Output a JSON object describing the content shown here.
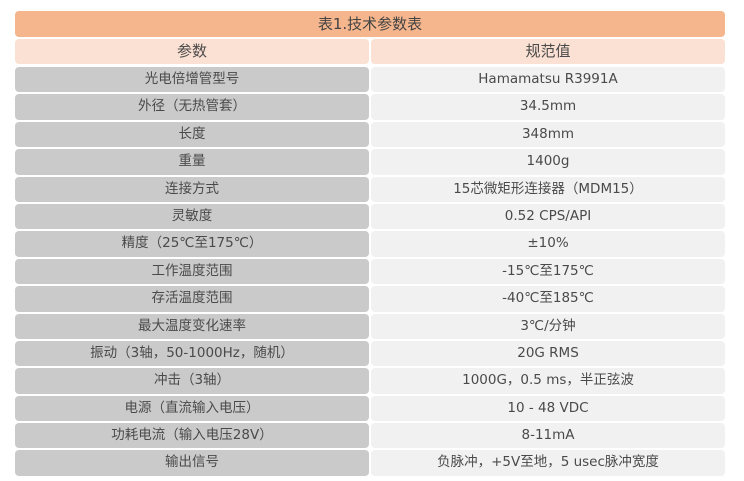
{
  "title": "表1.技术参数表",
  "headers": [
    "参数",
    "规范值"
  ],
  "rows": [
    [
      "光电倍增管型号",
      "Hamamatsu R3991A"
    ],
    [
      "外径（无热管套）",
      "34.5mm"
    ],
    [
      "长度",
      "348mm"
    ],
    [
      "重量",
      "1400g"
    ],
    [
      "连接方式",
      "15芯微矩形连接器（MDM15）"
    ],
    [
      "灵敏度",
      "0.52 CPS/API"
    ],
    [
      "精度（25℃至175℃）",
      "±10%"
    ],
    [
      "工作温度范围",
      "-15℃至175℃"
    ],
    [
      "存活温度范围",
      "-40℃至185℃"
    ],
    [
      "最大温度变化速率",
      "3℃/分钟"
    ],
    [
      "振动（3轴，50-1000Hz，随机）",
      "20G RMS"
    ],
    [
      "冲击（3轴）",
      "1000G，0.5 ms，半正弦波"
    ],
    [
      "电源（直流输入电压）",
      "10 - 48 VDC"
    ],
    [
      "功耗电流（输入电压28V）",
      "8-11mA"
    ],
    [
      "输出信号",
      "负脉冲，+5V至地，5 usec脉冲宽度"
    ]
  ],
  "colors": {
    "title_bg": "#f5b68d",
    "header_bg": "#fbe1d3",
    "param_bg": "#c9cac9",
    "value_bg": "#f1f1f1"
  }
}
